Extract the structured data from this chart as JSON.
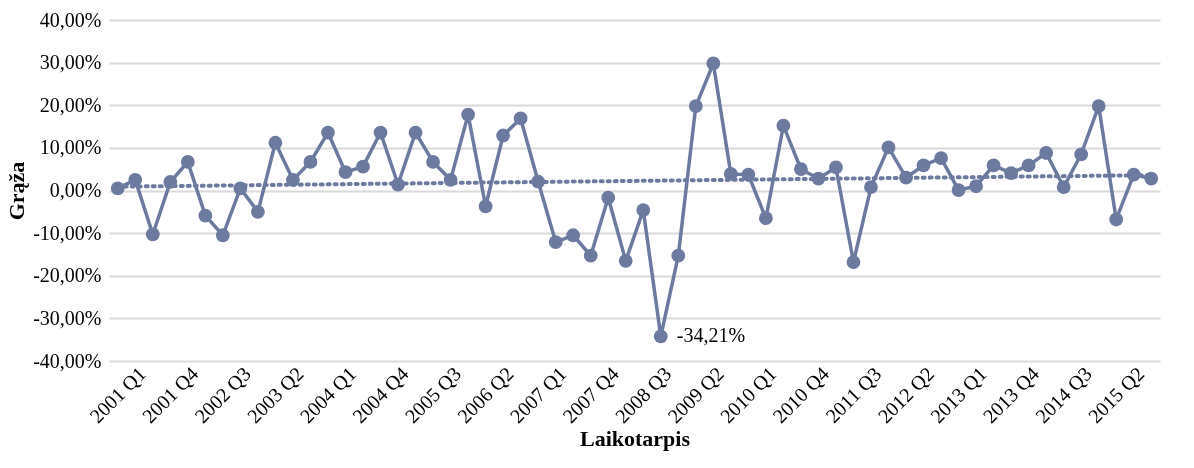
{
  "chart_data": {
    "type": "line",
    "xlabel": "Laikotarpis",
    "ylabel": "Grąža",
    "categories": [
      "2001 Q1",
      null,
      null,
      "2001 Q4",
      null,
      null,
      "2002 Q3",
      null,
      null,
      "2003 Q2",
      null,
      null,
      "2004 Q1",
      null,
      null,
      "2004 Q4",
      null,
      null,
      "2005 Q3",
      null,
      null,
      "2006 Q2",
      null,
      null,
      "2007 Q1",
      null,
      null,
      "2007 Q4",
      null,
      null,
      "2008 Q3",
      null,
      null,
      "2009 Q2",
      null,
      null,
      "2010 Q1",
      null,
      null,
      "2010 Q4",
      null,
      null,
      "2011 Q3",
      null,
      null,
      "2012 Q2",
      null,
      null,
      "2013 Q1",
      null,
      null,
      "2013 Q4",
      null,
      null,
      "2014 Q3",
      null,
      null,
      "2015 Q2",
      null,
      null
    ],
    "series": [
      {
        "color": "#6b7a9e",
        "marker": "circle",
        "line_style": "solid",
        "values": [
          0.5,
          2.5,
          -10.3,
          2.0,
          6.7,
          -5.9,
          -10.5,
          0.5,
          -5.0,
          11.2,
          2.5,
          6.7,
          13.6,
          4.3,
          5.6,
          13.6,
          1.4,
          13.6,
          6.7,
          2.5,
          17.8,
          -3.7,
          12.9,
          16.9,
          2.1,
          -12.1,
          -10.5,
          -15.3,
          -1.7,
          -16.5,
          -4.6,
          -34.2,
          -15.3,
          19.8,
          29.8,
          3.9,
          3.7,
          -6.5,
          15.2,
          5.0,
          2.8,
          5.4,
          -16.8,
          0.8,
          10.1,
          3.0,
          5.9,
          7.6,
          0.1,
          1.0,
          5.9,
          4.1,
          5.9,
          8.8,
          0.8,
          8.5,
          19.8,
          -6.8,
          3.7,
          2.8
        ]
      },
      {
        "color": "#6b7a9e",
        "marker": "none",
        "line_style": "dotted",
        "values": [
          0.9,
          null,
          null,
          null,
          null,
          null,
          null,
          null,
          null,
          null,
          null,
          null,
          null,
          null,
          null,
          null,
          null,
          null,
          null,
          null,
          null,
          null,
          null,
          null,
          null,
          null,
          null,
          null,
          null,
          null,
          null,
          null,
          null,
          null,
          null,
          null,
          null,
          null,
          null,
          null,
          null,
          null,
          null,
          null,
          null,
          null,
          null,
          null,
          null,
          null,
          null,
          null,
          null,
          null,
          null,
          null,
          null,
          null,
          null,
          3.6
        ]
      }
    ],
    "ylim": [
      -40,
      40
    ],
    "yticks": [
      {
        "value": -40,
        "label": "-40,00%"
      },
      {
        "value": -30,
        "label": "-30,00%"
      },
      {
        "value": -20,
        "label": "-20,00%"
      },
      {
        "value": -10,
        "label": "-10,00%"
      },
      {
        "value": 0,
        "label": "0,00%"
      },
      {
        "value": 10,
        "label": "10,00%"
      },
      {
        "value": 20,
        "label": "20,00%"
      },
      {
        "value": 30,
        "label": "30,00%"
      },
      {
        "value": 40,
        "label": "40,00%"
      }
    ],
    "grid": "y",
    "annotations": [
      "-34,21%"
    ]
  }
}
